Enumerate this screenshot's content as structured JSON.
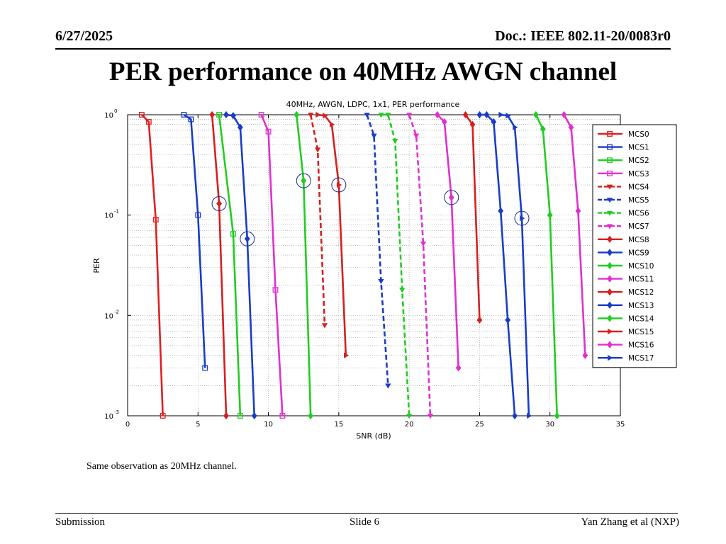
{
  "header": {
    "date": "6/27/2025",
    "doc": "Doc.: IEEE 802.11-20/0083r0"
  },
  "slide_title": "PER performance on 40MHz AWGN channel",
  "note": "Same observation as 20MHz channel.",
  "footer": {
    "left": "Submission",
    "center": "Slide 6",
    "right": "Yan Zhang et al (NXP)"
  },
  "chart_data": {
    "type": "line",
    "title": "40MHz, AWGN, LDPC, 1x1, PER performance",
    "xlabel": "SNR (dB)",
    "ylabel": "PER",
    "xlim": [
      0,
      35
    ],
    "ylim": [
      0.001,
      1
    ],
    "yscale": "log",
    "grid": true,
    "legend_position": "right",
    "xticks": [
      "0",
      "5",
      "10",
      "15",
      "20",
      "25",
      "30",
      "35"
    ],
    "ytick_labels": [
      {
        "base": "10",
        "exp": "0"
      },
      {
        "base": "10",
        "exp": "-1"
      },
      {
        "base": "10",
        "exp": "-2"
      },
      {
        "base": "10",
        "exp": "-3"
      }
    ],
    "series": [
      {
        "name": "MCS0",
        "color": "#e02020",
        "marker": "square",
        "dash": false,
        "x": [
          1.0,
          1.5,
          2.0,
          2.5
        ],
        "y": [
          1.0,
          0.85,
          0.09,
          0.001
        ]
      },
      {
        "name": "MCS1",
        "color": "#1a3cc8",
        "marker": "square",
        "dash": false,
        "x": [
          4.0,
          4.5,
          5.0,
          5.5
        ],
        "y": [
          1.0,
          0.9,
          0.1,
          0.003
        ]
      },
      {
        "name": "MCS2",
        "color": "#22cc22",
        "marker": "square",
        "dash": false,
        "x": [
          6.5,
          7.5,
          8.0
        ],
        "y": [
          1.0,
          0.065,
          0.001
        ]
      },
      {
        "name": "MCS3",
        "color": "#e030d0",
        "marker": "square",
        "dash": false,
        "x": [
          9.5,
          10.0,
          10.5,
          11.0
        ],
        "y": [
          1.0,
          0.68,
          0.018,
          0.001
        ]
      },
      {
        "name": "MCS4",
        "color": "#d42020",
        "marker": "triangle-down",
        "dash": true,
        "x": [
          13.0,
          13.5,
          14.0
        ],
        "y": [
          1.0,
          0.45,
          0.008
        ]
      },
      {
        "name": "MCS5",
        "color": "#1a3cc8",
        "marker": "triangle-down",
        "dash": true,
        "x": [
          17.0,
          17.5,
          18.0,
          18.5
        ],
        "y": [
          1.0,
          0.62,
          0.022,
          0.002
        ]
      },
      {
        "name": "MCS6",
        "color": "#22cc22",
        "marker": "triangle-down",
        "dash": true,
        "x": [
          18.0,
          18.5,
          19.0,
          19.5,
          20.0
        ],
        "y": [
          1.0,
          1.0,
          0.55,
          0.018,
          0.001
        ]
      },
      {
        "name": "MCS7",
        "color": "#e030d0",
        "marker": "triangle-down",
        "dash": true,
        "x": [
          20.0,
          20.5,
          21.0,
          21.5
        ],
        "y": [
          1.0,
          0.62,
          0.052,
          0.001
        ]
      },
      {
        "name": "MCS8",
        "color": "#d42020",
        "marker": "diamond",
        "dash": false,
        "x": [
          6.0,
          6.5,
          7.0
        ],
        "y": [
          1.0,
          0.13,
          0.001
        ]
      },
      {
        "name": "MCS9",
        "color": "#1a3cc8",
        "marker": "diamond",
        "dash": false,
        "x": [
          7.0,
          7.5,
          8.0,
          8.5,
          9.0
        ],
        "y": [
          1.0,
          0.98,
          0.75,
          0.058,
          0.001
        ]
      },
      {
        "name": "MCS10",
        "color": "#22cc22",
        "marker": "diamond",
        "dash": false,
        "x": [
          12.0,
          12.5,
          13.0
        ],
        "y": [
          1.0,
          0.22,
          0.001
        ]
      },
      {
        "name": "MCS11",
        "color": "#e030d0",
        "marker": "diamond",
        "dash": false,
        "x": [
          22.0,
          22.5,
          23.0,
          23.5
        ],
        "y": [
          1.0,
          0.85,
          0.15,
          0.003
        ]
      },
      {
        "name": "MCS12",
        "color": "#d42020",
        "marker": "diamond",
        "dash": false,
        "x": [
          24.0,
          24.5,
          25.0
        ],
        "y": [
          1.0,
          0.8,
          0.009
        ]
      },
      {
        "name": "MCS13",
        "color": "#1a3cc8",
        "marker": "diamond",
        "dash": false,
        "x": [
          25.0,
          25.5,
          26.0,
          26.5,
          27.0,
          27.5
        ],
        "y": [
          1.0,
          1.0,
          0.85,
          0.11,
          0.009,
          0.001
        ]
      },
      {
        "name": "MCS14",
        "color": "#22cc22",
        "marker": "diamond",
        "dash": false,
        "x": [
          29.0,
          29.5,
          30.0,
          30.5
        ],
        "y": [
          1.0,
          0.72,
          0.1,
          0.001
        ]
      },
      {
        "name": "MCS15",
        "color": "#d42020",
        "marker": "triangle-right",
        "dash": false,
        "x": [
          13.5,
          14.0,
          14.5,
          15.0,
          15.5
        ],
        "y": [
          1.0,
          0.98,
          0.8,
          0.2,
          0.004
        ]
      },
      {
        "name": "MCS16",
        "color": "#e030d0",
        "marker": "diamond",
        "dash": false,
        "x": [
          31.0,
          31.5,
          32.0,
          32.5
        ],
        "y": [
          1.0,
          0.75,
          0.11,
          0.004
        ]
      },
      {
        "name": "MCS17",
        "color": "#1a3cc8",
        "marker": "triangle-right",
        "dash": false,
        "x": [
          26.5,
          27.0,
          27.5,
          28.0,
          28.5
        ],
        "y": [
          1.0,
          0.98,
          0.75,
          0.093,
          0.001
        ]
      }
    ],
    "highlighted_points": [
      {
        "series": "MCS8",
        "x": 6.5,
        "y": 0.13
      },
      {
        "series": "MCS9",
        "x": 8.5,
        "y": 0.058
      },
      {
        "series": "MCS10",
        "x": 12.5,
        "y": 0.22
      },
      {
        "series": "MCS15",
        "x": 15.0,
        "y": 0.2
      },
      {
        "series": "MCS11",
        "x": 23.0,
        "y": 0.15
      },
      {
        "series": "MCS17",
        "x": 28.0,
        "y": 0.093
      }
    ]
  }
}
